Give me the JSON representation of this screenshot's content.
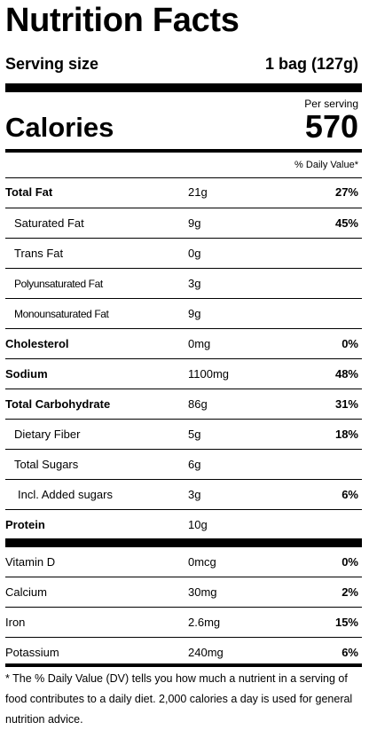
{
  "title": "Nutrition Facts",
  "serving": {
    "label": "Serving size",
    "value": "1 bag (127g)"
  },
  "calories": {
    "per_serving": "Per serving",
    "label": "Calories",
    "value": "570"
  },
  "daily_value_header": "% Daily Value*",
  "nutrients": [
    {
      "name": "Total Fat",
      "amount": "21g",
      "dv": "27%"
    },
    {
      "name": "Saturated Fat",
      "amount": "9g",
      "dv": "45%"
    },
    {
      "name": "Trans Fat",
      "amount": "0g",
      "dv": ""
    },
    {
      "name": "Polyunsaturated Fat",
      "amount": "3g",
      "dv": ""
    },
    {
      "name": "Monounsaturated Fat",
      "amount": "9g",
      "dv": ""
    },
    {
      "name": "Cholesterol",
      "amount": "0mg",
      "dv": "0%"
    },
    {
      "name": "Sodium",
      "amount": "1100mg",
      "dv": "48%"
    },
    {
      "name": "Total Carbohydrate",
      "amount": "86g",
      "dv": "31%"
    },
    {
      "name": "Dietary Fiber",
      "amount": "5g",
      "dv": "18%"
    },
    {
      "name": "Total Sugars",
      "amount": "6g",
      "dv": ""
    },
    {
      "name": "Incl. Added sugars",
      "amount": "3g",
      "dv": "6%"
    },
    {
      "name": "Protein",
      "amount": "10g",
      "dv": ""
    }
  ],
  "vitamins": [
    {
      "name": "Vitamin D",
      "amount": "0mcg",
      "dv": "0%"
    },
    {
      "name": "Calcium",
      "amount": "30mg",
      "dv": "2%"
    },
    {
      "name": "Iron",
      "amount": "2.6mg",
      "dv": "15%"
    },
    {
      "name": "Potassium",
      "amount": "240mg",
      "dv": "6%"
    }
  ],
  "footnote": "* The % Daily Value (DV) tells you how much a nutrient in a serving of food contributes to a daily diet. 2,000 calories a day is used for general nutrition advice."
}
